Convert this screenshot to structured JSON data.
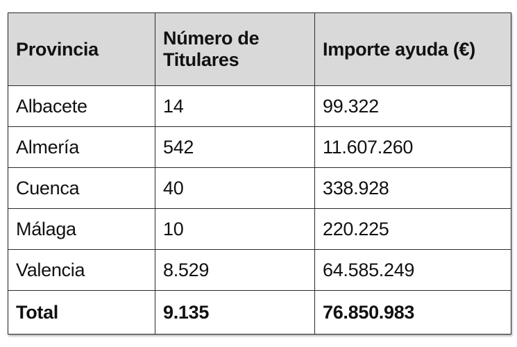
{
  "table": {
    "headers": [
      "Provincia",
      "Número de Titulares",
      "Importe ayuda (€)"
    ],
    "rows": [
      [
        "Albacete",
        "14",
        "99.322"
      ],
      [
        "Almería",
        "542",
        "11.607.260"
      ],
      [
        "Cuenca",
        "40",
        "338.928"
      ],
      [
        "Málaga",
        "10",
        "220.225"
      ],
      [
        "Valencia",
        "8.529",
        "64.585.249"
      ]
    ],
    "total": [
      "Total",
      "9.135",
      "76.850.983"
    ]
  },
  "colors": {
    "header_background": "#d9d9d9",
    "border": "#2a2a2a",
    "text": "#111111"
  }
}
